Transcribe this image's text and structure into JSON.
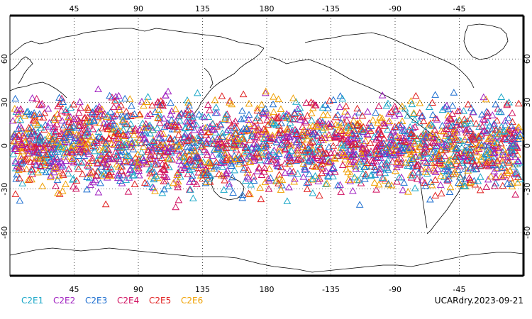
{
  "map": {
    "top_lon_labels": [
      "45",
      "90",
      "135",
      "180",
      "-135",
      "-90",
      "-45"
    ],
    "bottom_lon_labels": [
      "45",
      "90",
      "135",
      "180",
      "-135",
      "-90",
      "-45"
    ],
    "lat_labels": [
      "60",
      "30",
      "0",
      "-30",
      "-60"
    ],
    "lon_range": [
      0,
      360
    ],
    "lat_range": [
      -90,
      90
    ],
    "observation_lat_band": [
      -45,
      45
    ]
  },
  "legend": {
    "items": [
      {
        "label": "C2E1",
        "color": "#1aa7c8"
      },
      {
        "label": "C2E2",
        "color": "#a020c0"
      },
      {
        "label": "C2E3",
        "color": "#1e6fd0"
      },
      {
        "label": "C2E4",
        "color": "#d01060"
      },
      {
        "label": "C2E5",
        "color": "#e02020"
      },
      {
        "label": "C2E6",
        "color": "#f0a000"
      }
    ]
  },
  "date_label": "UCARdry.2023-09-21"
}
